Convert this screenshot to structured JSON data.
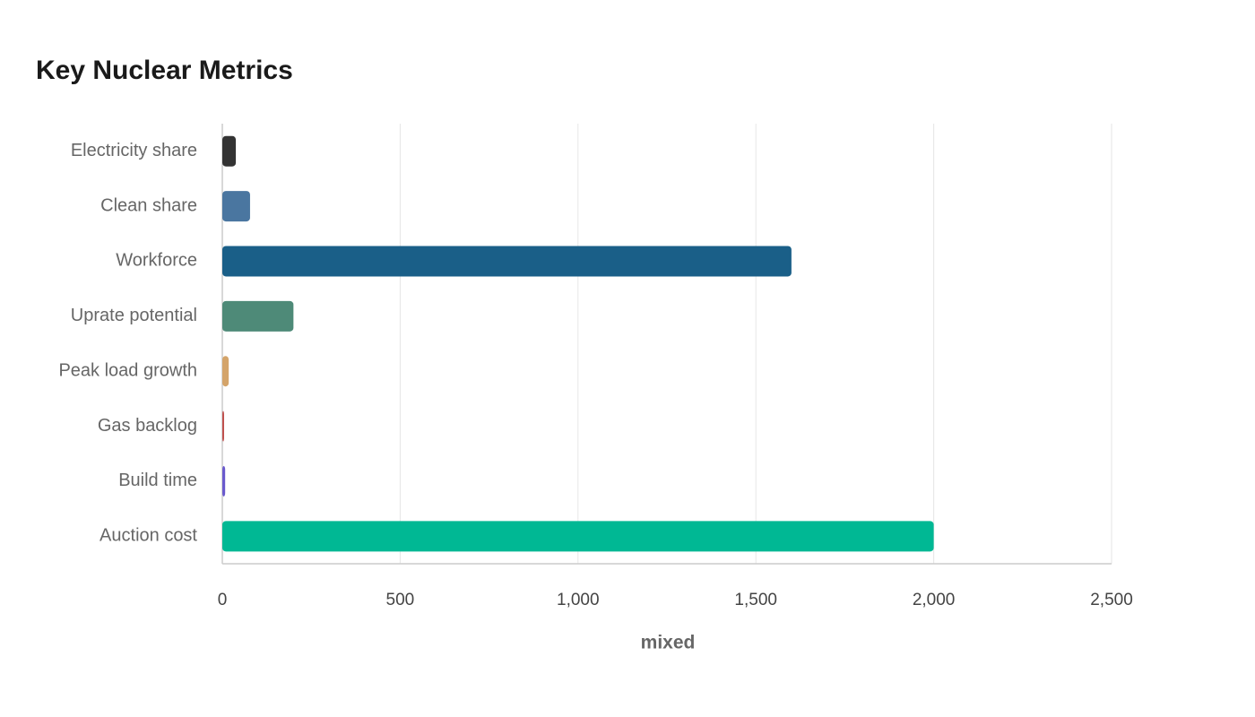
{
  "chart_data": {
    "type": "bar",
    "orientation": "horizontal",
    "title": "Key Nuclear Metrics",
    "x_label": "mixed",
    "categories": [
      "Electricity share",
      "Clean share",
      "Workforce",
      "Uprate potential",
      "Peak load growth",
      "Gas backlog",
      "Build time",
      "Auction cost"
    ],
    "values": [
      38,
      78,
      1600,
      200,
      18,
      5,
      8,
      2000
    ],
    "colors": [
      "#333333",
      "#4a76a0",
      "#1a5f88",
      "#4e8a78",
      "#d4a46a",
      "#c0504d",
      "#6a5acd",
      "#00b894"
    ],
    "xlim": [
      0,
      2500
    ],
    "xticks": [
      0,
      500,
      {
        "value": 1000,
        "label": "1,000"
      },
      {
        "value": 1500,
        "label": "1,500"
      },
      {
        "value": 2000,
        "label": "2,000"
      },
      {
        "value": 2500,
        "label": "2,500"
      }
    ],
    "grid": true
  }
}
